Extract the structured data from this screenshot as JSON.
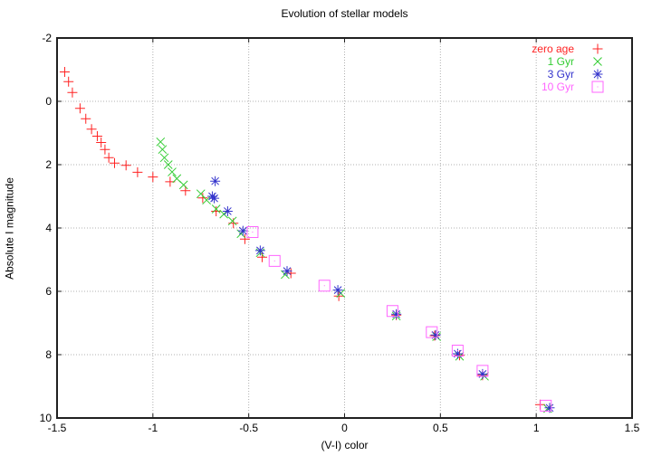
{
  "chart_data": {
    "type": "scatter",
    "title": "Evolution of stellar models",
    "xlabel": "(V-I) color",
    "ylabel": "Absolute I magnitude",
    "xlim": [
      -1.5,
      1.5
    ],
    "ylim": [
      -2,
      10
    ],
    "y_axis_inverted_down": true,
    "grid": true,
    "background": "#ffffff",
    "border_color": "#202020",
    "grid_color": "#b0b0b0",
    "legend_position": "top-right-inside",
    "x_ticks": [
      -1.5,
      -1,
      -0.5,
      0,
      0.5,
      1,
      1.5
    ],
    "x_tick_labels": [
      "-1.5",
      "-1",
      "-0.5",
      "0",
      "0.5",
      "1",
      "1.5"
    ],
    "y_ticks": [
      -2,
      0,
      2,
      4,
      6,
      8,
      10
    ],
    "y_tick_labels": [
      "-2",
      "0",
      "2",
      "4",
      "6",
      "8",
      "10"
    ],
    "series": [
      {
        "name": "zero age",
        "marker": "plus",
        "color": "#ff2222",
        "points": [
          [
            -1.46,
            -0.93
          ],
          [
            -1.44,
            -0.62
          ],
          [
            -1.42,
            -0.28
          ],
          [
            -1.38,
            0.22
          ],
          [
            -1.35,
            0.55
          ],
          [
            -1.32,
            0.88
          ],
          [
            -1.29,
            1.1
          ],
          [
            -1.27,
            1.3
          ],
          [
            -1.25,
            1.52
          ],
          [
            -1.23,
            1.78
          ],
          [
            -1.2,
            1.95
          ],
          [
            -1.14,
            2.02
          ],
          [
            -1.08,
            2.24
          ],
          [
            -1.0,
            2.39
          ],
          [
            -0.91,
            2.54
          ],
          [
            -0.83,
            2.82
          ],
          [
            -0.74,
            3.05
          ],
          [
            -0.67,
            3.47
          ],
          [
            -0.58,
            3.85
          ],
          [
            -0.52,
            4.35
          ],
          [
            -0.43,
            4.92
          ],
          [
            -0.28,
            5.43
          ],
          [
            -0.03,
            6.15
          ],
          [
            0.27,
            6.75
          ],
          [
            0.47,
            7.4
          ],
          [
            0.6,
            8.02
          ],
          [
            0.72,
            8.65
          ],
          [
            1.02,
            9.58
          ]
        ]
      },
      {
        "name": "1 Gyr",
        "marker": "cross",
        "color": "#33cc33",
        "points": [
          [
            -0.96,
            1.28
          ],
          [
            -0.95,
            1.52
          ],
          [
            -0.94,
            1.78
          ],
          [
            -0.92,
            2.0
          ],
          [
            -0.9,
            2.23
          ],
          [
            -0.875,
            2.44
          ],
          [
            -0.84,
            2.64
          ],
          [
            -0.75,
            2.92
          ],
          [
            -0.72,
            3.12
          ],
          [
            -0.67,
            3.4
          ],
          [
            -0.63,
            3.56
          ],
          [
            -0.585,
            3.78
          ],
          [
            -0.54,
            4.18
          ],
          [
            -0.44,
            4.78
          ],
          [
            -0.31,
            5.47
          ],
          [
            -0.02,
            6.06
          ],
          [
            0.27,
            6.78
          ],
          [
            0.48,
            7.43
          ],
          [
            0.6,
            8.05
          ],
          [
            0.73,
            8.68
          ],
          [
            1.06,
            9.7
          ]
        ]
      },
      {
        "name": "3 Gyr",
        "marker": "asterisk",
        "color": "#3333cc",
        "points": [
          [
            -0.675,
            2.52
          ],
          [
            -0.69,
            3.0
          ],
          [
            -0.68,
            3.06
          ],
          [
            -0.61,
            3.47
          ],
          [
            -0.53,
            4.09
          ],
          [
            -0.44,
            4.71
          ],
          [
            -0.3,
            5.36
          ],
          [
            -0.035,
            5.96
          ],
          [
            0.27,
            6.72
          ],
          [
            0.475,
            7.38
          ],
          [
            0.59,
            7.97
          ],
          [
            0.72,
            8.61
          ],
          [
            1.07,
            9.68
          ]
        ]
      },
      {
        "name": "10 Gyr",
        "marker": "square-open",
        "color": "#ff66ff",
        "points": [
          [
            -0.48,
            4.13
          ],
          [
            -0.365,
            5.04
          ],
          [
            -0.105,
            5.82
          ],
          [
            0.25,
            6.62
          ],
          [
            0.455,
            7.29
          ],
          [
            0.59,
            7.87
          ],
          [
            0.72,
            8.51
          ],
          [
            1.05,
            9.61
          ]
        ]
      }
    ]
  }
}
